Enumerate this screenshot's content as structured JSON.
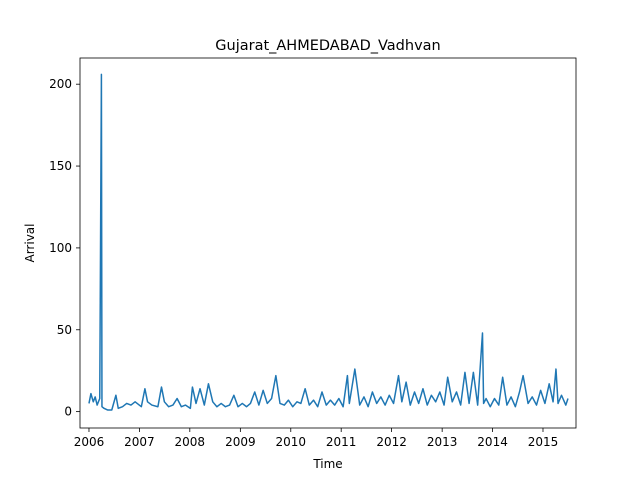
{
  "chart_data": {
    "type": "line",
    "title": "Gujarat_AHMEDABAD_Vadhvan",
    "xlabel": "Time",
    "ylabel": "Arrival",
    "xlim": [
      "2005-10-28",
      "2015-08-28"
    ],
    "ylim": [
      -10,
      216
    ],
    "x_ticks": [
      "2006",
      "2007",
      "2008",
      "2009",
      "2010",
      "2011",
      "2012",
      "2013",
      "2014",
      "2015"
    ],
    "y_ticks": [
      0,
      50,
      100,
      150,
      200
    ],
    "grid": false,
    "legend": "none",
    "series": [
      {
        "color": "#1f77b4",
        "points": [
          [
            "2006-01-01",
            5
          ],
          [
            "2006-01-15",
            11
          ],
          [
            "2006-02-01",
            6
          ],
          [
            "2006-02-15",
            9
          ],
          [
            "2006-03-01",
            4
          ],
          [
            "2006-03-20",
            8
          ],
          [
            "2006-04-01",
            206
          ],
          [
            "2006-04-05",
            3
          ],
          [
            "2006-04-20",
            2
          ],
          [
            "2006-05-15",
            1
          ],
          [
            "2006-06-15",
            1
          ],
          [
            "2006-07-15",
            10
          ],
          [
            "2006-08-01",
            2
          ],
          [
            "2006-09-01",
            3
          ],
          [
            "2006-10-01",
            5
          ],
          [
            "2006-11-01",
            4
          ],
          [
            "2006-12-01",
            6
          ],
          [
            "2007-01-15",
            3
          ],
          [
            "2007-02-10",
            14
          ],
          [
            "2007-03-01",
            6
          ],
          [
            "2007-04-01",
            4
          ],
          [
            "2007-05-15",
            3
          ],
          [
            "2007-06-10",
            15
          ],
          [
            "2007-07-01",
            6
          ],
          [
            "2007-08-01",
            3
          ],
          [
            "2007-09-01",
            4
          ],
          [
            "2007-10-01",
            8
          ],
          [
            "2007-11-01",
            3
          ],
          [
            "2007-12-01",
            4
          ],
          [
            "2008-01-05",
            2
          ],
          [
            "2008-01-20",
            15
          ],
          [
            "2008-02-15",
            5
          ],
          [
            "2008-03-15",
            14
          ],
          [
            "2008-04-15",
            4
          ],
          [
            "2008-05-15",
            17
          ],
          [
            "2008-06-15",
            6
          ],
          [
            "2008-07-15",
            3
          ],
          [
            "2008-08-15",
            5
          ],
          [
            "2008-09-15",
            3
          ],
          [
            "2008-10-15",
            4
          ],
          [
            "2008-11-15",
            10
          ],
          [
            "2008-12-15",
            3
          ],
          [
            "2009-01-15",
            5
          ],
          [
            "2009-02-15",
            3
          ],
          [
            "2009-03-15",
            5
          ],
          [
            "2009-04-15",
            12
          ],
          [
            "2009-05-15",
            4
          ],
          [
            "2009-06-15",
            13
          ],
          [
            "2009-07-15",
            5
          ],
          [
            "2009-08-15",
            8
          ],
          [
            "2009-09-15",
            22
          ],
          [
            "2009-10-15",
            5
          ],
          [
            "2009-11-15",
            4
          ],
          [
            "2009-12-15",
            7
          ],
          [
            "2010-01-15",
            3
          ],
          [
            "2010-02-15",
            6
          ],
          [
            "2010-03-15",
            5
          ],
          [
            "2010-04-15",
            14
          ],
          [
            "2010-05-15",
            4
          ],
          [
            "2010-06-15",
            7
          ],
          [
            "2010-07-15",
            3
          ],
          [
            "2010-08-15",
            12
          ],
          [
            "2010-09-15",
            4
          ],
          [
            "2010-10-15",
            7
          ],
          [
            "2010-11-15",
            4
          ],
          [
            "2010-12-15",
            8
          ],
          [
            "2011-01-15",
            3
          ],
          [
            "2011-02-15",
            22
          ],
          [
            "2011-03-01",
            5
          ],
          [
            "2011-04-10",
            26
          ],
          [
            "2011-05-15",
            4
          ],
          [
            "2011-06-15",
            9
          ],
          [
            "2011-07-15",
            3
          ],
          [
            "2011-08-15",
            12
          ],
          [
            "2011-09-15",
            5
          ],
          [
            "2011-10-15",
            9
          ],
          [
            "2011-11-15",
            4
          ],
          [
            "2011-12-15",
            10
          ],
          [
            "2012-01-15",
            5
          ],
          [
            "2012-02-20",
            22
          ],
          [
            "2012-03-15",
            6
          ],
          [
            "2012-04-15",
            18
          ],
          [
            "2012-05-15",
            4
          ],
          [
            "2012-06-15",
            12
          ],
          [
            "2012-07-15",
            5
          ],
          [
            "2012-08-15",
            14
          ],
          [
            "2012-09-15",
            4
          ],
          [
            "2012-10-15",
            10
          ],
          [
            "2012-11-15",
            6
          ],
          [
            "2012-12-15",
            12
          ],
          [
            "2013-01-15",
            4
          ],
          [
            "2013-02-10",
            21
          ],
          [
            "2013-03-15",
            6
          ],
          [
            "2013-04-15",
            12
          ],
          [
            "2013-05-15",
            4
          ],
          [
            "2013-06-15",
            24
          ],
          [
            "2013-07-15",
            5
          ],
          [
            "2013-08-15",
            24
          ],
          [
            "2013-09-15",
            4
          ],
          [
            "2013-10-20",
            48
          ],
          [
            "2013-10-28",
            5
          ],
          [
            "2013-11-15",
            8
          ],
          [
            "2013-12-15",
            3
          ],
          [
            "2014-01-15",
            8
          ],
          [
            "2014-02-15",
            4
          ],
          [
            "2014-03-15",
            21
          ],
          [
            "2014-04-15",
            4
          ],
          [
            "2014-05-15",
            9
          ],
          [
            "2014-06-15",
            3
          ],
          [
            "2014-07-15",
            12
          ],
          [
            "2014-08-10",
            22
          ],
          [
            "2014-09-15",
            5
          ],
          [
            "2014-10-15",
            9
          ],
          [
            "2014-11-15",
            4
          ],
          [
            "2014-12-15",
            13
          ],
          [
            "2015-01-15",
            5
          ],
          [
            "2015-02-15",
            17
          ],
          [
            "2015-03-15",
            6
          ],
          [
            "2015-04-05",
            26
          ],
          [
            "2015-04-20",
            5
          ],
          [
            "2015-05-15",
            10
          ],
          [
            "2015-06-15",
            4
          ],
          [
            "2015-07-01",
            8
          ]
        ]
      }
    ]
  }
}
